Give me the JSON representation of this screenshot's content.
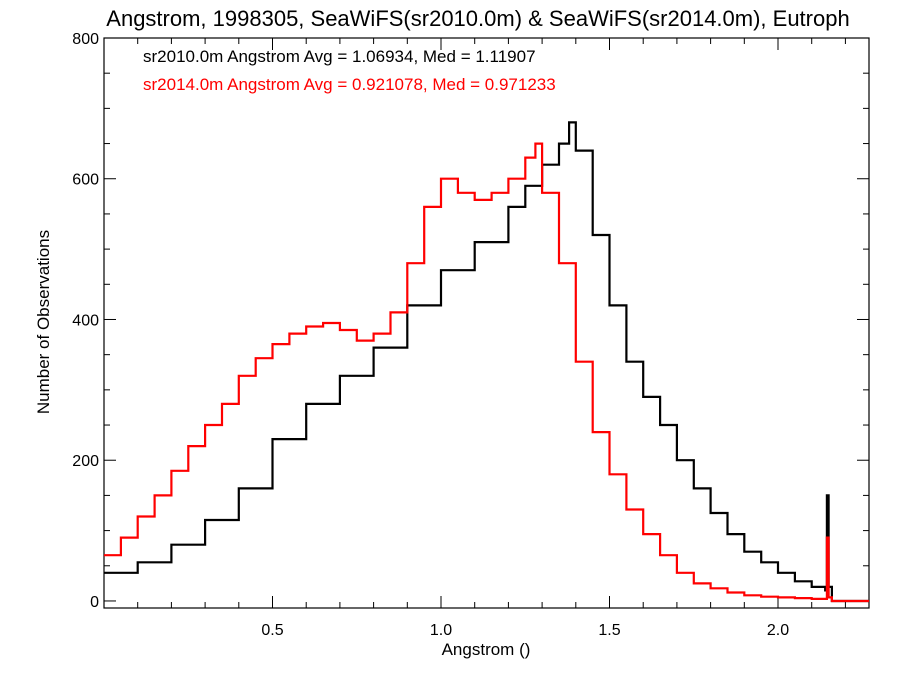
{
  "chart_data": {
    "type": "line",
    "title": "Angstrom, 1998305, SeaWiFS(sr2010.0m) & SeaWiFS(sr2014.0m), Eutroph",
    "xlabel": "Angstrom ()",
    "ylabel": "Number of Observations",
    "xlim": [
      0.0,
      2.27
    ],
    "ylim": [
      -10,
      800
    ],
    "xticks": [
      0.5,
      1.0,
      1.5,
      2.0
    ],
    "xtick_labels": [
      "0.5",
      "1.0",
      "1.5",
      "2.0"
    ],
    "yticks": [
      0,
      200,
      400,
      600,
      800
    ],
    "ytick_labels": [
      "0",
      "200",
      "400",
      "600",
      "800"
    ],
    "stats_lines": [
      {
        "text": "sr2010.0m Angstrom Avg = 1.06934, Med = 1.11907",
        "color": "#000000"
      },
      {
        "text": "sr2014.0m Angstrom Avg = 0.921078, Med = 0.971233",
        "color": "#ff0000"
      }
    ],
    "grid": false,
    "series": [
      {
        "color": "#000000",
        "x": [
          0.0,
          0.1,
          0.2,
          0.3,
          0.4,
          0.5,
          0.6,
          0.7,
          0.8,
          0.9,
          1.0,
          1.1,
          1.2,
          1.25,
          1.3,
          1.35,
          1.38,
          1.4,
          1.45,
          1.5,
          1.55,
          1.6,
          1.65,
          1.7,
          1.75,
          1.8,
          1.85,
          1.9,
          1.95,
          2.0,
          2.05,
          2.1,
          2.14,
          2.145,
          2.15,
          2.16,
          2.27
        ],
        "values": [
          40,
          55,
          80,
          115,
          160,
          230,
          280,
          320,
          360,
          420,
          470,
          510,
          560,
          590,
          620,
          650,
          680,
          640,
          520,
          420,
          340,
          290,
          250,
          200,
          160,
          125,
          95,
          70,
          55,
          40,
          28,
          20,
          15,
          150,
          20,
          0,
          0
        ]
      },
      {
        "color": "#ff0000",
        "x": [
          0.0,
          0.05,
          0.1,
          0.15,
          0.2,
          0.25,
          0.3,
          0.35,
          0.4,
          0.45,
          0.5,
          0.55,
          0.6,
          0.65,
          0.7,
          0.75,
          0.8,
          0.85,
          0.9,
          0.95,
          1.0,
          1.05,
          1.1,
          1.15,
          1.2,
          1.25,
          1.28,
          1.3,
          1.35,
          1.4,
          1.45,
          1.5,
          1.55,
          1.6,
          1.65,
          1.7,
          1.75,
          1.8,
          1.85,
          1.9,
          1.95,
          2.0,
          2.05,
          2.1,
          2.14,
          2.145,
          2.15,
          2.16,
          2.27
        ],
        "values": [
          65,
          90,
          120,
          150,
          185,
          220,
          250,
          280,
          320,
          345,
          365,
          380,
          390,
          395,
          385,
          370,
          380,
          410,
          480,
          560,
          600,
          580,
          570,
          580,
          600,
          630,
          650,
          580,
          480,
          340,
          240,
          180,
          130,
          95,
          65,
          40,
          25,
          18,
          12,
          8,
          6,
          5,
          4,
          3,
          3,
          90,
          5,
          0,
          0
        ]
      }
    ]
  }
}
